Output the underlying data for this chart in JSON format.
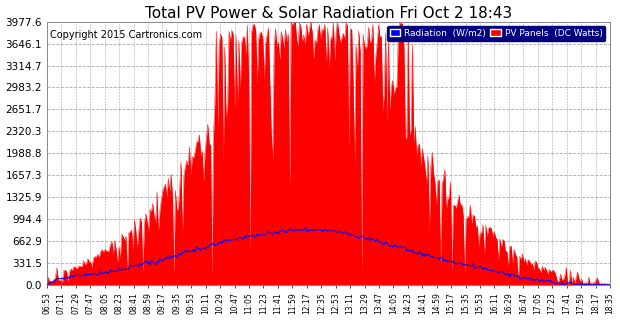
{
  "title": "Total PV Power & Solar Radiation Fri Oct 2 18:43",
  "copyright": "Copyright 2015 Cartronics.com",
  "legend_radiation": "Radiation  (W/m2)",
  "legend_pv": "PV Panels  (DC Watts)",
  "y_ticks": [
    0.0,
    331.5,
    662.9,
    994.4,
    1325.9,
    1657.3,
    1988.8,
    2320.3,
    2651.7,
    2983.2,
    3314.7,
    3646.1,
    3977.6
  ],
  "y_max": 3977.6,
  "background_color": "#ffffff",
  "plot_bg_color": "#ffffff",
  "grid_color": "#aaaaaa",
  "red_fill_color": "#ff0000",
  "blue_line_color": "#0000ff",
  "title_fontsize": 11,
  "copyright_fontsize": 7,
  "x_tick_fontsize": 5.5,
  "y_tick_fontsize": 7.5,
  "n_points": 400,
  "figwidth": 6.2,
  "figheight": 3.2,
  "dpi": 100
}
